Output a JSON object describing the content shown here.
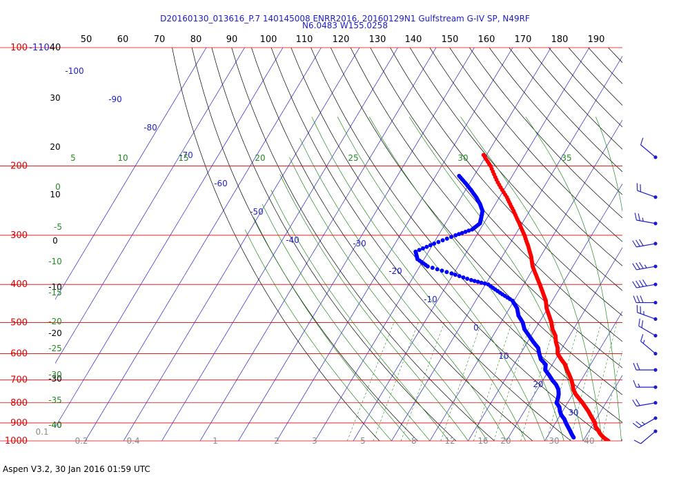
{
  "header": {
    "line1": "D20160130_013616_P.7 140145008 ENRR2016, 20160129N1 Gulfstream G-IV SP, N49RF",
    "line2": "N6.0483 W155.0258"
  },
  "footer": {
    "text": "Aspen V3.2, 30 Jan 2016  01:59 UTC"
  },
  "colors": {
    "pressure_lines": "#dd0000",
    "isotherms": "#2222cc",
    "dry_adiabats": "#000000",
    "mixing_ratio": "#228b22",
    "temperature": "#ff0000",
    "dewpoint": "#0000ff",
    "wind_barbs": "#1c1cc8"
  },
  "chart_data": {
    "type": "scatter",
    "title": "D20160130_013616_P.7 140145008 ENRR2016, 20160129N1 Gulfstream G-IV SP, N49RF",
    "subtitle": "N6.0483 W155.0258",
    "y_scale": "log",
    "y_units": "hPa",
    "x_units": "degC",
    "ylim": [
      1000,
      100
    ],
    "xlim": [
      -40,
      40
    ],
    "grid": true,
    "pressure_tick_labels": [
      "100",
      "200",
      "300",
      "400",
      "500",
      "600",
      "700",
      "800",
      "900",
      "1000"
    ],
    "pressure_tick_values": [
      100,
      200,
      300,
      400,
      500,
      600,
      700,
      800,
      900,
      1000
    ],
    "top_tick_labels": [
      "-110",
      "40",
      "50",
      "60",
      "70",
      "80",
      "90",
      "100",
      "110",
      "120",
      "130",
      "140",
      "150",
      "160",
      "170",
      "180",
      "190"
    ],
    "height_labels": [
      "40",
      "30",
      "20",
      "10",
      "0",
      "-10",
      "-20",
      "-30",
      "-40"
    ],
    "isotherm_labels": [
      "-100",
      "-90",
      "-80",
      "-70",
      "-60",
      "-50",
      "-40",
      "-30",
      "-20",
      "-10",
      "0",
      "10",
      "20",
      "30"
    ],
    "isotherm_values": [
      -100,
      -90,
      -80,
      -70,
      -60,
      -50,
      -40,
      -30,
      -20,
      -10,
      0,
      10,
      20,
      30
    ],
    "mixing_ratio_labels": [
      "0.1",
      "0.2",
      "0.4",
      "1",
      "2",
      "3",
      "5",
      "8",
      "12",
      "16",
      "20",
      "30",
      "40"
    ],
    "mixing_ratio_values": [
      0.1,
      0.2,
      0.4,
      1,
      2,
      3,
      5,
      8,
      12,
      16,
      20,
      30,
      40
    ],
    "theta_e_labels": [
      "5",
      "10",
      "15",
      "20",
      "25",
      "30",
      "35",
      "0",
      "-5",
      "-10",
      "-15",
      "-20",
      "-25",
      "-30",
      "-35",
      "-40"
    ],
    "temperature": {
      "p": [
        1000,
        980,
        960,
        940,
        920,
        900,
        880,
        860,
        840,
        820,
        800,
        780,
        760,
        740,
        720,
        700,
        680,
        660,
        640,
        620,
        600,
        580,
        560,
        540,
        520,
        500,
        480,
        460,
        440,
        420,
        400,
        380,
        360,
        340,
        320,
        300,
        280,
        260,
        240,
        220,
        200,
        185
      ],
      "t": [
        26.6,
        24.8,
        23.4,
        22.3,
        21.0,
        20.3,
        19.1,
        17.9,
        16.7,
        15.3,
        13.9,
        12.3,
        10.7,
        9.4,
        8.5,
        7.4,
        6.1,
        4.7,
        3.4,
        1.5,
        -0.3,
        -1.2,
        -2.6,
        -3.7,
        -5.5,
        -6.8,
        -8.5,
        -10.3,
        -11.7,
        -13.7,
        -15.8,
        -18.1,
        -20.5,
        -22.4,
        -24.8,
        -27.5,
        -30.7,
        -34.2,
        -38.1,
        -42.8,
        -47.2,
        -51.5
      ]
    },
    "dewpoint": {
      "p": [
        980,
        960,
        940,
        920,
        900,
        880,
        860,
        840,
        820,
        800,
        780,
        760,
        740,
        720,
        700,
        680,
        660,
        640,
        620,
        600,
        580,
        560,
        540,
        520,
        500,
        480,
        460,
        440,
        420,
        400,
        390,
        375,
        360,
        345,
        330,
        315,
        300,
        290,
        280,
        270,
        260,
        250,
        240,
        230,
        220,
        210
      ],
      "td": [
        17.0,
        15.9,
        14.9,
        13.8,
        12.7,
        11.7,
        10.3,
        9.3,
        8.5,
        7.1,
        6.8,
        6.3,
        5.5,
        4.2,
        2.4,
        0.8,
        -1.0,
        -1.7,
        -3.8,
        -5.1,
        -6.3,
        -8.5,
        -10.6,
        -12.8,
        -14.3,
        -16.5,
        -18.0,
        -20.4,
        -24.9,
        -29.3,
        -34.4,
        -40.6,
        -47.9,
        -51.7,
        -53.4,
        -49.8,
        -45.5,
        -42.1,
        -41.0,
        -41.6,
        -42.3,
        -44.0,
        -46.1,
        -48.6,
        -51.4,
        -54.5
      ]
    },
    "wind_barbs": {
      "p": [
        190,
        240,
        280,
        315,
        360,
        400,
        445,
        490,
        540,
        600,
        660,
        730,
        800,
        875,
        945
      ],
      "speed_kt": [
        10,
        20,
        25,
        30,
        35,
        40,
        30,
        25,
        20,
        15,
        20,
        15,
        20,
        25,
        10
      ],
      "direction_deg": [
        310,
        290,
        280,
        260,
        260,
        260,
        270,
        290,
        300,
        310,
        270,
        270,
        260,
        240,
        230
      ]
    }
  }
}
